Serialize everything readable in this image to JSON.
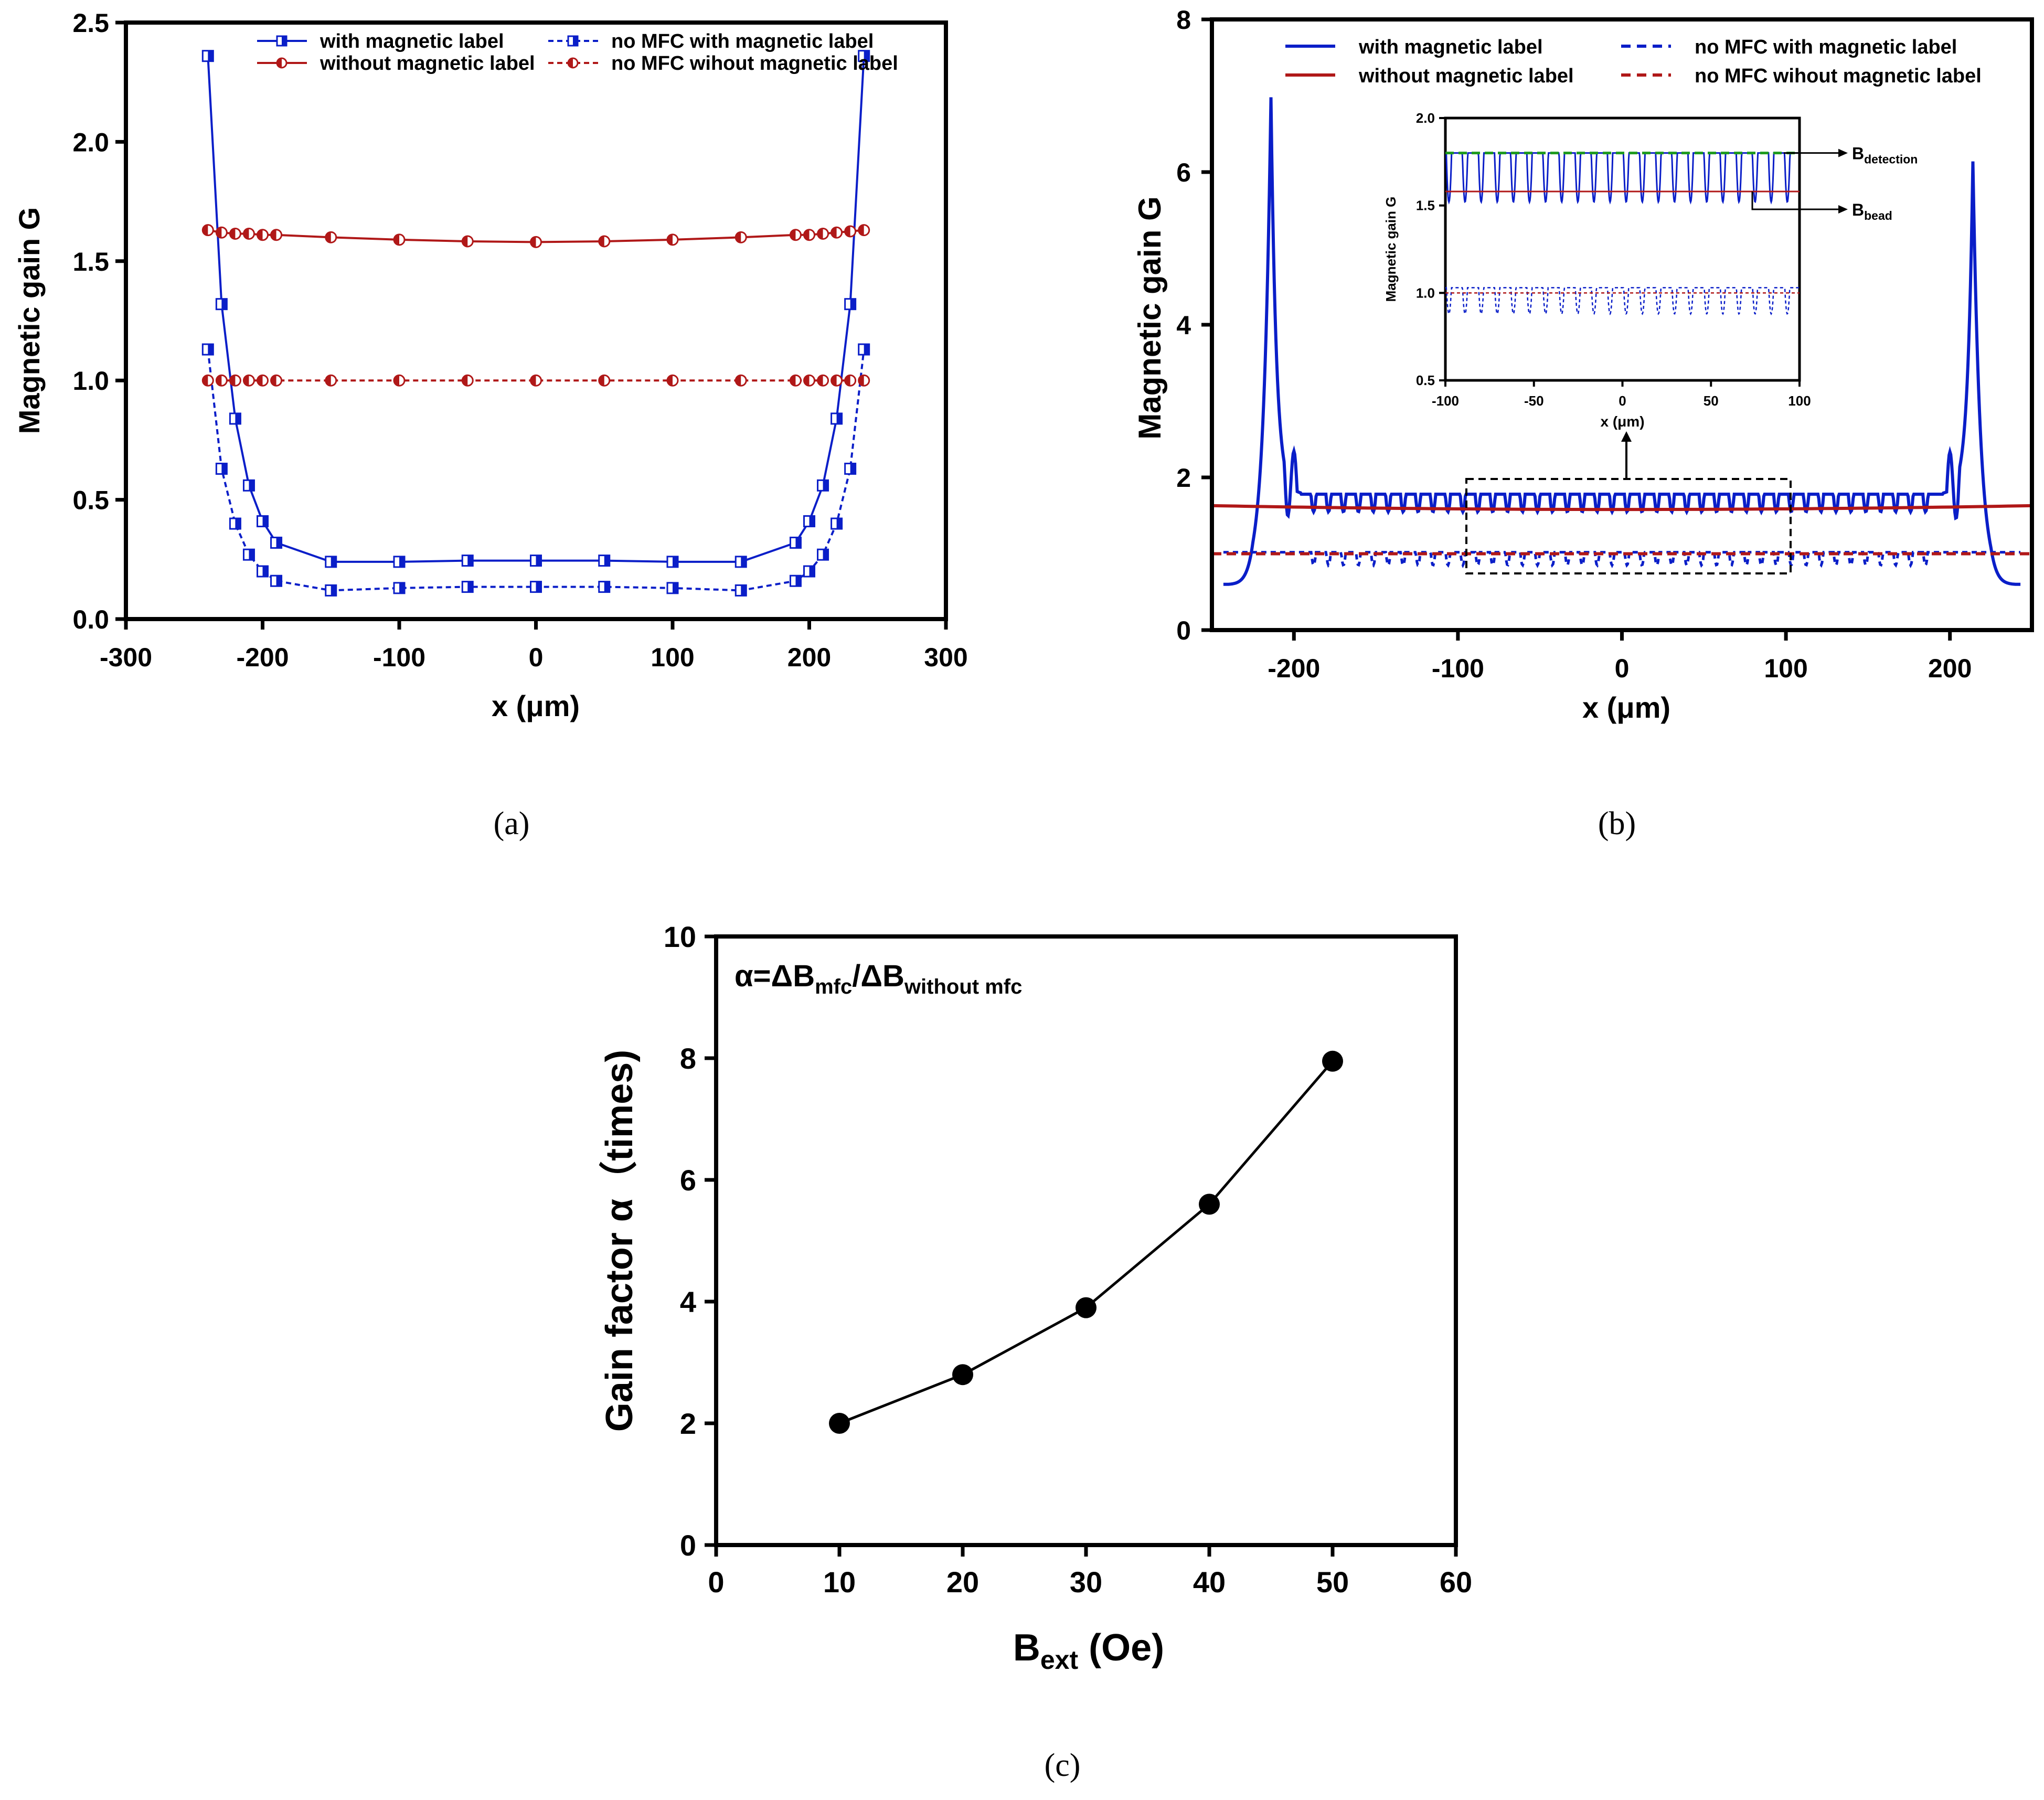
{
  "colors": {
    "blue": "#0a1ec8",
    "blue_light": "#5d7df0",
    "red": "#b01818",
    "green": "#1e9a1e",
    "black": "#000000"
  },
  "chart_data": [
    {
      "id": "a",
      "type": "line",
      "panel_label": "(a)",
      "title": "",
      "xlabel": "x (μm)",
      "ylabel": "Magnetic gain G",
      "xlim": [
        -300,
        300
      ],
      "ylim": [
        0.0,
        2.5
      ],
      "xticks": [
        "-300",
        "-200",
        "-100",
        "0",
        "100",
        "200",
        "300"
      ],
      "yticks": [
        "0.0",
        "0.5",
        "1.0",
        "1.5",
        "2.0",
        "2.5"
      ],
      "x": [
        -240,
        -230,
        -220,
        -210,
        -200,
        -190,
        -150,
        -100,
        -50,
        0,
        50,
        100,
        150,
        190,
        200,
        210,
        220,
        230,
        240
      ],
      "series": [
        {
          "name": "with magnetic label",
          "style": "solid",
          "marker": "square",
          "color": "blue",
          "values": [
            2.36,
            1.32,
            0.84,
            0.56,
            0.41,
            0.32,
            0.24,
            0.24,
            0.245,
            0.245,
            0.245,
            0.24,
            0.24,
            0.32,
            0.41,
            0.56,
            0.84,
            1.32,
            2.36
          ]
        },
        {
          "name": "without magnetic label",
          "style": "solid",
          "marker": "circle",
          "color": "red",
          "values": [
            1.63,
            1.62,
            1.615,
            1.615,
            1.61,
            1.61,
            1.6,
            1.59,
            1.583,
            1.58,
            1.583,
            1.59,
            1.6,
            1.61,
            1.61,
            1.615,
            1.62,
            1.625,
            1.63
          ]
        },
        {
          "name": "no MFC with magnetic label",
          "style": "dashed",
          "marker": "square",
          "color": "blue",
          "values": [
            1.13,
            0.63,
            0.4,
            0.27,
            0.2,
            0.16,
            0.12,
            0.13,
            0.135,
            0.135,
            0.135,
            0.13,
            0.12,
            0.16,
            0.2,
            0.27,
            0.4,
            0.63,
            1.13
          ]
        },
        {
          "name": "no MFC wihout magnetic label",
          "style": "dashed",
          "marker": "circle",
          "color": "red",
          "values": [
            1.0,
            1.0,
            1.0,
            1.0,
            1.0,
            1.0,
            1.0,
            1.0,
            1.0,
            1.0,
            1.0,
            1.0,
            1.0,
            1.0,
            1.0,
            1.0,
            1.0,
            1.0,
            1.0
          ]
        }
      ],
      "legend": "top"
    },
    {
      "id": "b",
      "type": "line",
      "panel_label": "(b)",
      "title": "",
      "xlabel": "x (μm)",
      "ylabel": "Magnetic gain G",
      "xlim": [
        -250,
        250
      ],
      "ylim": [
        0,
        8
      ],
      "xticks": [
        "-200",
        "-100",
        "0",
        "100",
        "200"
      ],
      "xtick_values": [
        -200,
        -100,
        0,
        100,
        200
      ],
      "yticks": [
        "0",
        "2",
        "4",
        "6",
        "8"
      ],
      "series": [
        {
          "name": "with magnetic label",
          "style": "solid",
          "color": "blue",
          "description": "baseline 1.78 with periodic dips to ~1.55 every ~9 μm between -190 and 190; sharp peaks 6.98 at x=-214 and 6.14 at x=214; drops to 0.6 at the edges",
          "baseline": 1.78,
          "dip_min": 1.55,
          "peaks": [
            [
              -214,
              6.98
            ],
            [
              214,
              6.14
            ]
          ],
          "edge_min": 0.6
        },
        {
          "name": "without magnetic label",
          "style": "solid",
          "color": "red",
          "description": "nearly flat ~1.58-1.63 across the range",
          "values_at_edges": 1.63,
          "value_center": 1.58
        },
        {
          "name": "no MFC with magnetic label",
          "style": "dashed",
          "color": "blue",
          "description": "dashed trace near 1.0 with dips to ~0.85",
          "baseline": 1.02,
          "dip_min": 0.85
        },
        {
          "name": "no MFC wihout magnetic label",
          "style": "dashed",
          "color": "red",
          "description": "flat at 1.0",
          "value": 1.0
        }
      ],
      "legend": "top",
      "annotations": [
        "dashed box from x=-100 to 100 with arrow to inset"
      ],
      "inset": {
        "xlabel": "x (μm)",
        "ylabel": "Magnetic gain G",
        "xlim": [
          -100,
          100
        ],
        "ylim": [
          0.5,
          2.0
        ],
        "xticks": [
          "-100",
          "-50",
          "0",
          "50",
          "100"
        ],
        "yticks": [
          "0.5",
          "1.0",
          "1.5",
          "2.0"
        ],
        "B_detection_value": 1.8,
        "B_bead_value": 1.58,
        "B_detection_label": "B",
        "B_detection_sub": "detection",
        "B_bead_label": "B",
        "B_bead_sub": "bead"
      }
    },
    {
      "id": "c",
      "type": "line",
      "panel_label": "(c)",
      "title": "",
      "xlabel_main": "B",
      "xlabel_sub": "ext",
      "xlabel_unit": " (Oe)",
      "ylabel": "Gain factor α（times)",
      "xlim": [
        0,
        60
      ],
      "ylim": [
        0,
        10
      ],
      "xticks": [
        "0",
        "10",
        "20",
        "30",
        "40",
        "50",
        "60"
      ],
      "yticks": [
        "0",
        "2",
        "4",
        "6",
        "8",
        "10"
      ],
      "x": [
        10,
        20,
        30,
        40,
        50
      ],
      "values": [
        2.0,
        2.8,
        3.9,
        5.6,
        7.95
      ],
      "annotation_parts": [
        "α=ΔB",
        "mfc",
        "/ΔB",
        "without mfc"
      ]
    }
  ]
}
